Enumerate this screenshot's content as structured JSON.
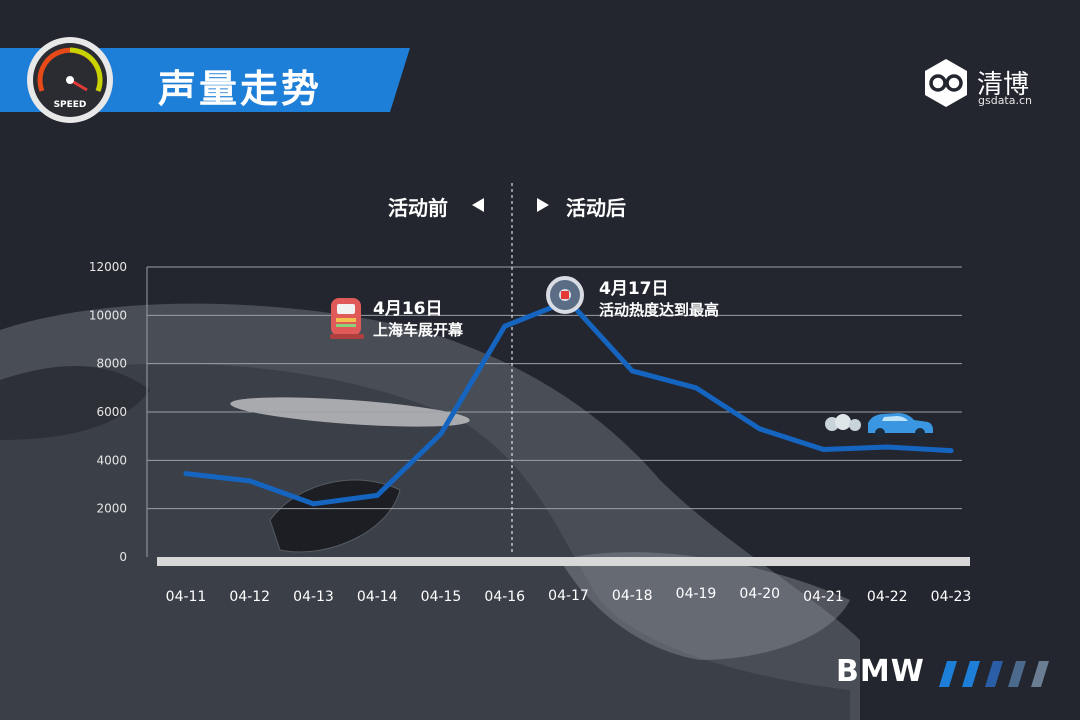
{
  "header": {
    "title": "声量走势",
    "gauge_label": "SPEED"
  },
  "logo": {
    "name": "清博",
    "subtitle": "gsdata.cn"
  },
  "brand": {
    "name": "BMW"
  },
  "phases": {
    "before": "活动前",
    "after": "活动后"
  },
  "annotations": [
    {
      "date": "4月16日",
      "text": "上海车展开幕",
      "icon": "fuel-pump-icon"
    },
    {
      "date": "4月17日",
      "text": "活动热度达到最高",
      "icon": "steering-wheel-icon"
    }
  ],
  "colors": {
    "accent": "#1e7fd8",
    "line": "#1565c0",
    "background": "#23262e",
    "grid": "#9aa0a8",
    "baseline": "#d8d8d8"
  },
  "chart_data": {
    "type": "line",
    "categories": [
      "04-11",
      "04-12",
      "04-13",
      "04-14",
      "04-15",
      "04-16",
      "04-17",
      "04-18",
      "04-19",
      "04-20",
      "04-21",
      "04-22",
      "04-23"
    ],
    "series": [
      {
        "values": [
          3450,
          3150,
          2200,
          2550,
          5100,
          9550,
          10600,
          7700,
          7000,
          5300,
          4450,
          4550,
          4400
        ]
      }
    ],
    "yticks": [
      "0",
      "2000",
      "4000",
      "6000",
      "8000",
      "10000",
      "12000"
    ],
    "ylim": [
      0,
      12000
    ],
    "grid": true
  }
}
